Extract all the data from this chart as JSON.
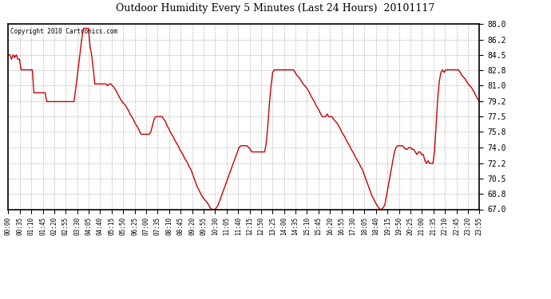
{
  "title": "Outdoor Humidity Every 5 Minutes (Last 24 Hours)  20101117",
  "copyright_text": "Copyright 2010 Cartronics.com",
  "line_color": "#cc0000",
  "background_color": "#ffffff",
  "grid_color": "#aaaaaa",
  "ylim": [
    67.0,
    88.0
  ],
  "yticks": [
    67.0,
    68.8,
    70.5,
    72.2,
    74.0,
    75.8,
    77.5,
    79.2,
    81.0,
    82.8,
    84.5,
    86.2,
    88.0
  ],
  "xtick_labels": [
    "00:00",
    "00:35",
    "01:10",
    "01:45",
    "02:20",
    "02:55",
    "03:30",
    "04:05",
    "04:40",
    "05:15",
    "05:50",
    "06:25",
    "07:00",
    "07:35",
    "08:10",
    "08:45",
    "09:20",
    "09:55",
    "10:30",
    "11:05",
    "11:40",
    "12:15",
    "12:50",
    "13:25",
    "14:00",
    "14:35",
    "15:10",
    "15:45",
    "16:20",
    "16:55",
    "17:30",
    "18:05",
    "18:40",
    "19:15",
    "19:50",
    "20:25",
    "21:00",
    "21:35",
    "22:10",
    "22:45",
    "23:20",
    "23:55"
  ],
  "humidity_values": [
    84.5,
    84.5,
    84.0,
    84.5,
    84.2,
    84.5,
    84.0,
    84.0,
    82.8,
    82.8,
    82.8,
    82.8,
    82.8,
    82.8,
    82.8,
    82.8,
    80.2,
    80.2,
    80.2,
    80.2,
    80.2,
    80.2,
    80.2,
    80.2,
    79.2,
    79.2,
    79.2,
    79.2,
    79.2,
    79.2,
    79.2,
    79.2,
    79.2,
    79.2,
    79.2,
    79.2,
    79.2,
    79.2,
    79.2,
    79.2,
    79.2,
    79.2,
    80.5,
    82.0,
    83.5,
    85.0,
    86.5,
    87.5,
    87.5,
    87.5,
    87.5,
    85.5,
    84.5,
    83.0,
    81.2,
    81.2,
    81.2,
    81.2,
    81.2,
    81.2,
    81.2,
    81.2,
    81.0,
    81.2,
    81.2,
    81.0,
    80.8,
    80.5,
    80.2,
    79.8,
    79.5,
    79.2,
    79.0,
    78.8,
    78.5,
    78.2,
    77.8,
    77.5,
    77.2,
    76.8,
    76.5,
    76.2,
    75.8,
    75.5,
    75.5,
    75.5,
    75.5,
    75.5,
    75.5,
    75.8,
    76.5,
    77.2,
    77.5,
    77.5,
    77.5,
    77.5,
    77.5,
    77.2,
    77.0,
    76.5,
    76.2,
    75.8,
    75.5,
    75.2,
    74.8,
    74.5,
    74.2,
    73.8,
    73.5,
    73.2,
    72.8,
    72.5,
    72.2,
    71.8,
    71.5,
    71.0,
    70.5,
    70.0,
    69.5,
    69.2,
    68.8,
    68.5,
    68.2,
    68.0,
    67.8,
    67.5,
    67.2,
    67.0,
    67.0,
    67.0,
    67.2,
    67.5,
    68.0,
    68.5,
    69.0,
    69.5,
    70.0,
    70.5,
    71.0,
    71.5,
    72.0,
    72.5,
    73.0,
    73.5,
    74.0,
    74.2,
    74.2,
    74.2,
    74.2,
    74.2,
    74.0,
    73.8,
    73.5,
    73.5,
    73.5,
    73.5,
    73.5,
    73.5,
    73.5,
    73.5,
    73.5,
    74.5,
    76.5,
    79.0,
    81.0,
    82.5,
    82.8,
    82.8,
    82.8,
    82.8,
    82.8,
    82.8,
    82.8,
    82.8,
    82.8,
    82.8,
    82.8,
    82.8,
    82.8,
    82.5,
    82.2,
    82.0,
    81.8,
    81.5,
    81.2,
    81.0,
    80.8,
    80.5,
    80.2,
    79.8,
    79.5,
    79.2,
    78.8,
    78.5,
    78.2,
    77.8,
    77.5,
    77.5,
    77.5,
    77.8,
    77.5,
    77.5,
    77.5,
    77.2,
    77.0,
    76.8,
    76.5,
    76.2,
    75.8,
    75.5,
    75.2,
    74.8,
    74.5,
    74.2,
    73.8,
    73.5,
    73.2,
    72.8,
    72.5,
    72.2,
    71.8,
    71.5,
    71.0,
    70.5,
    70.0,
    69.5,
    69.0,
    68.5,
    68.2,
    67.8,
    67.5,
    67.2,
    67.0,
    67.0,
    67.2,
    67.5,
    68.5,
    69.5,
    70.5,
    71.5,
    72.5,
    73.5,
    74.0,
    74.2,
    74.2,
    74.2,
    74.2,
    74.0,
    73.8,
    73.8,
    74.0,
    74.0,
    73.8,
    73.8,
    73.5,
    73.2,
    73.5,
    73.5,
    73.2,
    73.2,
    72.5,
    72.2,
    72.5,
    72.2,
    72.2,
    72.2,
    73.5,
    76.5,
    79.5,
    81.5,
    82.5,
    82.8,
    82.5,
    82.8,
    82.8,
    82.8,
    82.8,
    82.8,
    82.8,
    82.8,
    82.8,
    82.8,
    82.5,
    82.2,
    82.0,
    81.8,
    81.5,
    81.2,
    81.0,
    80.8,
    80.5,
    80.2,
    79.8,
    79.5,
    79.2
  ]
}
